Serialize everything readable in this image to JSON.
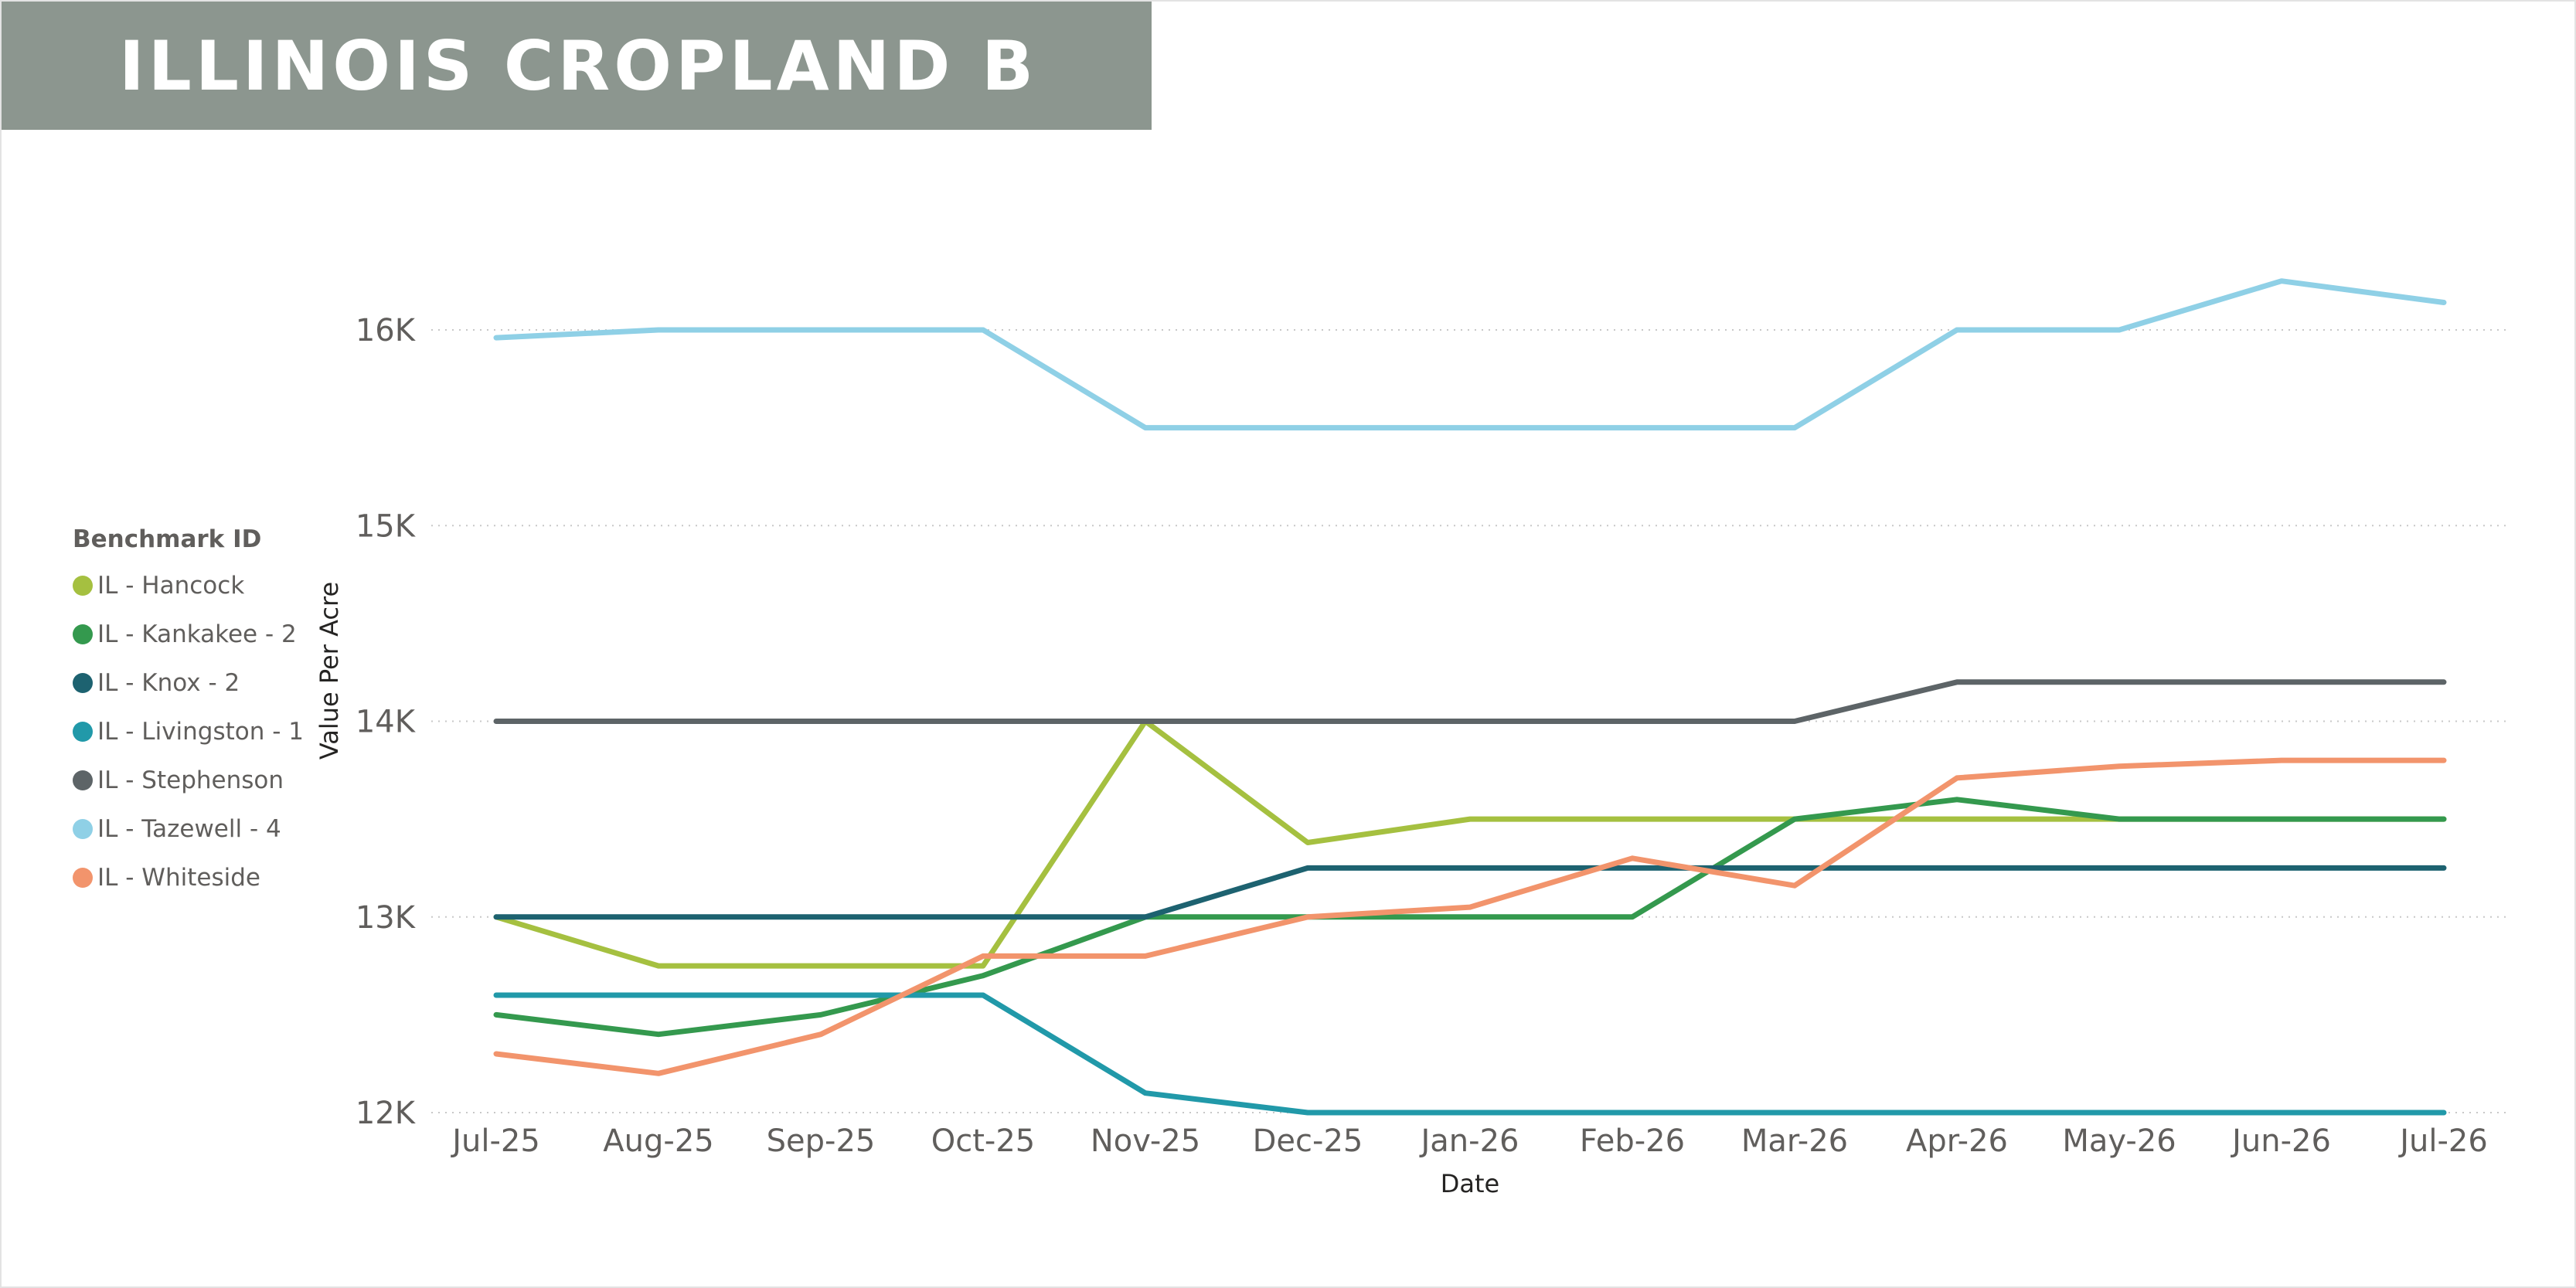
{
  "header": {
    "title": "ILLINOIS CROPLAND B"
  },
  "chart_data": {
    "type": "line",
    "title": "ILLINOIS CROPLAND B",
    "xlabel": "Date",
    "ylabel": "Value Per Acre",
    "ylim": [
      12000,
      16500
    ],
    "y_ticks": [
      {
        "value": 12000,
        "label": "12K"
      },
      {
        "value": 13000,
        "label": "13K"
      },
      {
        "value": 14000,
        "label": "14K"
      },
      {
        "value": 15000,
        "label": "15K"
      },
      {
        "value": 16000,
        "label": "16K"
      }
    ],
    "grid": "horizontal dotted",
    "legend_title": "Benchmark ID",
    "legend_position": "left",
    "categories": [
      "Jul-25",
      "Aug-25",
      "Sep-25",
      "Oct-25",
      "Nov-25",
      "Dec-25",
      "Jan-26",
      "Feb-26",
      "Mar-26",
      "Apr-26",
      "May-26",
      "Jun-26",
      "Jul-26"
    ],
    "series": [
      {
        "name": "IL - Hancock",
        "color": "#a5c040",
        "values": [
          13000,
          12750,
          12750,
          12750,
          14000,
          13380,
          13500,
          13500,
          13500,
          13500,
          13500,
          13500,
          13500
        ]
      },
      {
        "name": "IL - Kankakee - 2",
        "color": "#34994e",
        "values": [
          12500,
          12400,
          12500,
          12700,
          13000,
          13000,
          13000,
          13000,
          13500,
          13600,
          13500,
          13500,
          13500
        ]
      },
      {
        "name": "IL - Knox - 2",
        "color": "#1d6270",
        "values": [
          13000,
          13000,
          13000,
          13000,
          13000,
          13250,
          13250,
          13250,
          13250,
          13250,
          13250,
          13250,
          13250
        ]
      },
      {
        "name": "IL - Livingston - 1",
        "color": "#2199a9",
        "values": [
          12600,
          12600,
          12600,
          12600,
          12100,
          12000,
          12000,
          12000,
          12000,
          12000,
          12000,
          12000,
          12000
        ]
      },
      {
        "name": "IL - Stephenson",
        "color": "#5d6467",
        "values": [
          14000,
          14000,
          14000,
          14000,
          14000,
          14000,
          14000,
          14000,
          14000,
          14200,
          14200,
          14200,
          14200
        ]
      },
      {
        "name": "IL - Tazewell - 4",
        "color": "#8fd0e6",
        "values": [
          15960,
          16000,
          16000,
          16000,
          15500,
          15500,
          15500,
          15500,
          15500,
          16000,
          16000,
          16250,
          16140
        ]
      },
      {
        "name": "IL - Whiteside",
        "color": "#f2946c",
        "values": [
          12300,
          12200,
          12400,
          12800,
          12800,
          13000,
          13050,
          13300,
          13160,
          13710,
          13770,
          13800,
          13800
        ]
      }
    ]
  }
}
